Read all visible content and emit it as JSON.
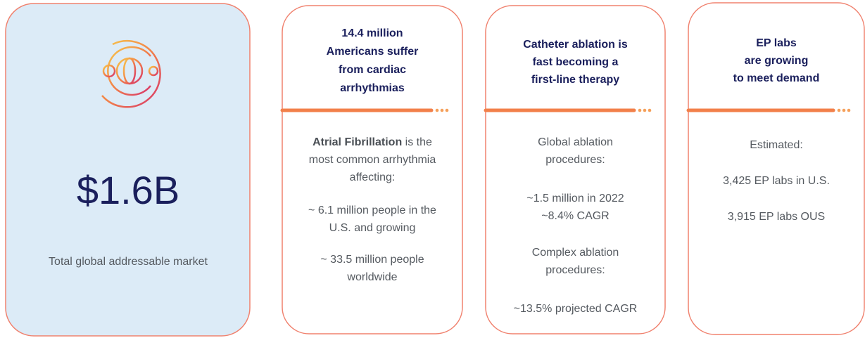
{
  "market": {
    "value": "$1.6B",
    "caption": "Total global addressable market"
  },
  "cards": [
    {
      "title": [
        "14.4 million",
        "Americans suffer",
        "from cardiac",
        "arrhythmias"
      ],
      "lead": "Atrial Fibrillation",
      "body": [
        " is the",
        "most common arrhythmia",
        "affecting:",
        "~ 6.1 million people in the",
        "U.S. and growing",
        "~ 33.5 million people",
        "worldwide"
      ]
    },
    {
      "title": [
        "Catheter ablation is",
        "fast becoming a",
        "first-line therapy"
      ],
      "body": [
        "Global ablation",
        "procedures:",
        "~1.5 million in 2022",
        "~8.4% CAGR",
        "Complex ablation",
        "procedures:",
        "~13.5% projected CAGR"
      ]
    },
    {
      "title": [
        "EP labs",
        "are growing",
        "to meet demand"
      ],
      "body": [
        "Estimated:",
        "3,425 EP labs in U.S.",
        "3,915 EP labs OUS"
      ]
    }
  ]
}
